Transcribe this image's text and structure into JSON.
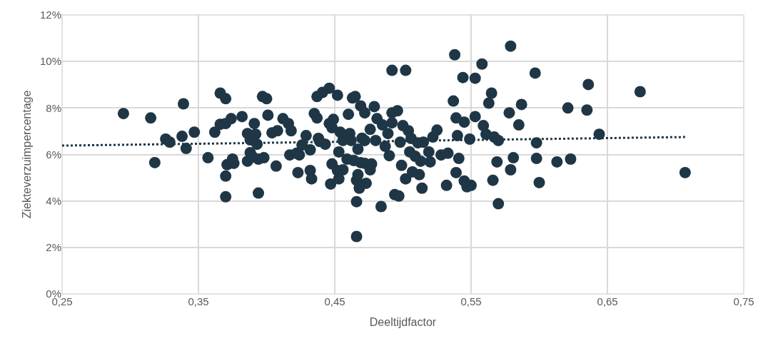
{
  "chart_data": {
    "type": "scatter",
    "xlabel": "Deeltijdfactor",
    "ylabel": "Ziekteverzuimpercentage",
    "xlim": [
      0.25,
      0.75
    ],
    "xticks": [
      {
        "value": 0.25,
        "label": "0,25"
      },
      {
        "value": 0.35,
        "label": "0,35"
      },
      {
        "value": 0.45,
        "label": "0,45"
      },
      {
        "value": 0.55,
        "label": "0,55"
      },
      {
        "value": 0.65,
        "label": "0,65"
      },
      {
        "value": 0.75,
        "label": "0,75"
      }
    ],
    "ylim": [
      0,
      12
    ],
    "yticks": [
      {
        "value": 0,
        "label": "0%"
      },
      {
        "value": 2,
        "label": "2%"
      },
      {
        "value": 4,
        "label": "4%"
      },
      {
        "value": 6,
        "label": "6%"
      },
      {
        "value": 8,
        "label": "8%"
      },
      {
        "value": 10,
        "label": "10%"
      },
      {
        "value": 12,
        "label": "12%"
      }
    ],
    "grid": true,
    "series": [
      {
        "color": "#1f3646",
        "marker": "circle",
        "x": [
          0.295,
          0.315,
          0.318,
          0.326,
          0.329,
          0.338,
          0.339,
          0.341,
          0.347,
          0.357,
          0.362,
          0.366,
          0.366,
          0.37,
          0.37,
          0.37,
          0.37,
          0.371,
          0.374,
          0.375,
          0.376,
          0.382,
          0.386,
          0.386,
          0.388,
          0.388,
          0.39,
          0.391,
          0.392,
          0.393,
          0.394,
          0.394,
          0.397,
          0.398,
          0.4,
          0.401,
          0.404,
          0.407,
          0.408,
          0.412,
          0.416,
          0.417,
          0.418,
          0.422,
          0.423,
          0.424,
          0.426,
          0.429,
          0.432,
          0.432,
          0.433,
          0.435,
          0.437,
          0.437,
          0.438,
          0.439,
          0.441,
          0.443,
          0.446,
          0.446,
          0.447,
          0.448,
          0.448,
          0.449,
          0.452,
          0.452,
          0.453,
          0.453,
          0.454,
          0.456,
          0.456,
          0.459,
          0.46,
          0.461,
          0.462,
          0.463,
          0.464,
          0.465,
          0.466,
          0.466,
          0.466,
          0.467,
          0.467,
          0.468,
          0.469,
          0.469,
          0.47,
          0.472,
          0.472,
          0.472,
          0.473,
          0.476,
          0.476,
          0.477,
          0.479,
          0.48,
          0.481,
          0.484,
          0.485,
          0.487,
          0.489,
          0.49,
          0.492,
          0.492,
          0.492,
          0.494,
          0.496,
          0.497,
          0.498,
          0.499,
          0.5,
          0.502,
          0.502,
          0.504,
          0.505,
          0.506,
          0.507,
          0.509,
          0.511,
          0.512,
          0.513,
          0.514,
          0.515,
          0.519,
          0.52,
          0.522,
          0.525,
          0.528,
          0.532,
          0.533,
          0.537,
          0.538,
          0.539,
          0.539,
          0.54,
          0.541,
          0.544,
          0.545,
          0.545,
          0.547,
          0.549,
          0.55,
          0.553,
          0.553,
          0.558,
          0.559,
          0.561,
          0.563,
          0.565,
          0.566,
          0.567,
          0.569,
          0.57,
          0.57,
          0.578,
          0.579,
          0.579,
          0.581,
          0.585,
          0.587,
          0.597,
          0.598,
          0.598,
          0.6,
          0.613,
          0.621,
          0.623,
          0.635,
          0.636,
          0.644,
          0.674,
          0.707
        ],
        "values": [
          7.76,
          7.57,
          5.65,
          6.66,
          6.53,
          6.78,
          8.18,
          6.26,
          6.96,
          5.86,
          6.96,
          7.3,
          8.64,
          8.4,
          7.33,
          5.07,
          4.18,
          5.56,
          7.54,
          5.8,
          5.62,
          7.63,
          6.9,
          5.71,
          6.63,
          6.08,
          5.89,
          7.33,
          6.87,
          6.44,
          5.8,
          4.34,
          8.49,
          5.86,
          8.4,
          7.69,
          6.93,
          5.5,
          7.02,
          7.54,
          7.33,
          5.98,
          7.02,
          6.05,
          5.22,
          5.98,
          6.41,
          6.81,
          5.31,
          6.2,
          4.95,
          7.76,
          7.57,
          8.49,
          6.69,
          6.56,
          8.67,
          6.44,
          8.85,
          7.33,
          4.73,
          5.59,
          7.15,
          7.51,
          8.55,
          5.31,
          4.95,
          6.11,
          6.96,
          5.34,
          6.6,
          5.8,
          7.73,
          6.9,
          6.6,
          8.43,
          5.74,
          8.49,
          4.89,
          3.97,
          2.47,
          5.13,
          6.23,
          4.55,
          8.09,
          5.65,
          6.7,
          7.79,
          5.62,
          6.6,
          4.76,
          7.08,
          5.34,
          5.59,
          8.06,
          6.6,
          7.54,
          3.76,
          7.27,
          6.35,
          6.9,
          5.95,
          7.36,
          9.62,
          7.79,
          4.27,
          7.88,
          4.21,
          6.53,
          5.53,
          7.24,
          9.62,
          4.95,
          7.02,
          6.11,
          6.69,
          5.25,
          5.92,
          6.5,
          5.13,
          5.71,
          4.55,
          6.53,
          6.11,
          5.68,
          6.75,
          7.05,
          5.98,
          4.67,
          6.05,
          8.3,
          10.29,
          7.57,
          5.22,
          6.81,
          5.83,
          9.31,
          4.86,
          7.39,
          4.61,
          6.66,
          4.67,
          9.28,
          7.63,
          9.89,
          7.24,
          6.87,
          8.21,
          8.64,
          4.89,
          6.75,
          5.68,
          3.88,
          6.6,
          7.79,
          10.66,
          5.34,
          5.86,
          7.27,
          8.15,
          9.5,
          6.5,
          5.83,
          4.79,
          5.68,
          8.0,
          5.8,
          7.91,
          9.01,
          6.87,
          8.7,
          5.22
        ]
      },
      {
        "type": "line",
        "color": "#1f3646",
        "marker": "none",
        "line_style": "dotted",
        "x": [
          0.25,
          0.707
        ],
        "values": [
          6.38,
          6.75
        ]
      }
    ]
  }
}
